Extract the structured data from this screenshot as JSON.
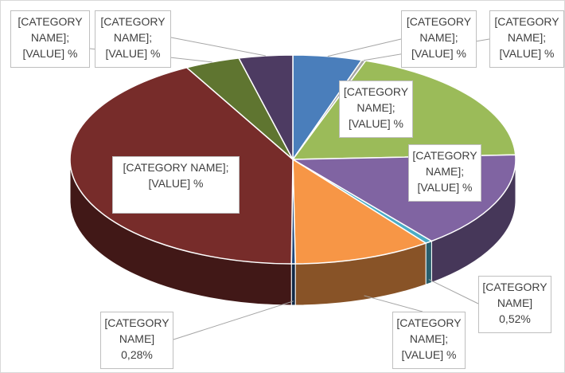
{
  "chart_data": {
    "type": "pie",
    "values": [
      5,
      0.3,
      19,
      15,
      0.52,
      10,
      0.28,
      42,
      4,
      3.9
    ],
    "value_labels": [
      "[CATEGORY NAME]; [VALUE] %",
      "[CATEGORY NAME]; [VALUE] %",
      "[CATEGORY NAME]; [VALUE] %",
      "[CATEGORY NAME]; [VALUE] %",
      "[CATEGORY NAME] 0,52%",
      "[CATEGORY NAME]; [VALUE] %",
      "[CATEGORY NAME] 0,28%",
      "[CATEGORY NAME]; [VALUE] %",
      "[CATEGORY NAME]; [VALUE] %",
      "[CATEGORY NAME]; [VALUE] %"
    ],
    "colors": [
      "#4a7ebb",
      "#a5a5a5",
      "#9bbb59",
      "#8064a2",
      "#4bacc6",
      "#f79646",
      "#1f497d",
      "#772c2a",
      "#5f7530",
      "#4d3b62"
    ]
  }
}
